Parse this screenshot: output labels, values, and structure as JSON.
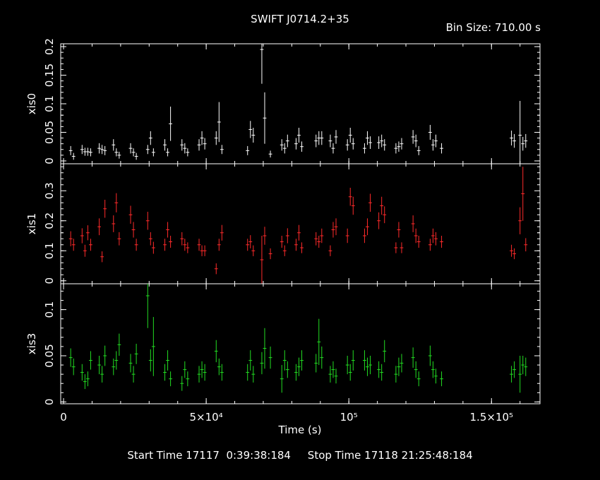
{
  "title": "SWIFT J0714.2+35",
  "bin_size": "Bin Size: 710.00 s",
  "footer": "Start Time 17117  0:39:38:184     Stop Time 17118 21:25:48:184",
  "chart_data": {
    "type": "scatter",
    "xlabel": "Time (s)",
    "xlim": [
      -1000,
      167000
    ],
    "x_ticks": [
      {
        "value": 0,
        "label": "0"
      },
      {
        "value": 50000,
        "label": "5×10⁴"
      },
      {
        "value": 100000,
        "label": "10⁵"
      },
      {
        "value": 150000,
        "label": "1.5×10⁵"
      }
    ],
    "panels": [
      {
        "name": "xis0",
        "color": "#ffffff",
        "ylim": [
          -0.005,
          0.205
        ],
        "y_ticks": [
          {
            "value": 0,
            "label": "0"
          },
          {
            "value": 0.05,
            "label": "0.05"
          },
          {
            "value": 0.1,
            "label": "0.1"
          },
          {
            "value": 0.15,
            "label": "0.15"
          },
          {
            "value": 0.2,
            "label": "0.2"
          }
        ],
        "x": [
          2500,
          3500,
          6500,
          7500,
          8500,
          9500,
          12500,
          13500,
          14500,
          17500,
          18500,
          19500,
          23500,
          24500,
          25500,
          29500,
          30500,
          31500,
          35500,
          36500,
          37500,
          41500,
          42500,
          43500,
          47500,
          48500,
          49500,
          53500,
          54500,
          55500,
          64500,
          65500,
          66500,
          69500,
          70500,
          72500,
          76500,
          77500,
          78500,
          81500,
          82500,
          83500,
          88500,
          89500,
          90500,
          93500,
          94500,
          95500,
          99500,
          100500,
          101500,
          105500,
          106500,
          107500,
          110500,
          111500,
          112500,
          116500,
          117500,
          118500,
          122500,
          123500,
          124500,
          128500,
          129500,
          130500,
          132500,
          157000,
          158000,
          160000,
          161000,
          162000
        ],
        "y": [
          0.018,
          0.008,
          0.02,
          0.016,
          0.016,
          0.015,
          0.022,
          0.02,
          0.018,
          0.028,
          0.015,
          0.01,
          0.022,
          0.015,
          0.008,
          0.02,
          0.04,
          0.015,
          0.028,
          0.015,
          0.065,
          0.028,
          0.022,
          0.015,
          0.028,
          0.04,
          0.03,
          0.04,
          0.068,
          0.02,
          0.018,
          0.055,
          0.045,
          0.195,
          0.075,
          0.012,
          0.028,
          0.022,
          0.035,
          0.03,
          0.045,
          0.025,
          0.035,
          0.04,
          0.04,
          0.035,
          0.022,
          0.042,
          0.028,
          0.045,
          0.03,
          0.022,
          0.04,
          0.032,
          0.032,
          0.035,
          0.028,
          0.022,
          0.025,
          0.03,
          0.042,
          0.035,
          0.018,
          0.05,
          0.028,
          0.035,
          0.022,
          0.04,
          0.035,
          0.045,
          0.03,
          0.035
        ],
        "err": [
          0.008,
          0.006,
          0.008,
          0.007,
          0.007,
          0.007,
          0.009,
          0.008,
          0.008,
          0.01,
          0.007,
          0.006,
          0.009,
          0.007,
          0.006,
          0.008,
          0.012,
          0.007,
          0.01,
          0.007,
          0.03,
          0.01,
          0.009,
          0.007,
          0.01,
          0.012,
          0.01,
          0.012,
          0.035,
          0.008,
          0.008,
          0.015,
          0.013,
          0.06,
          0.045,
          0.006,
          0.01,
          0.009,
          0.011,
          0.01,
          0.013,
          0.009,
          0.011,
          0.012,
          0.012,
          0.011,
          0.009,
          0.012,
          0.01,
          0.013,
          0.01,
          0.009,
          0.012,
          0.011,
          0.011,
          0.011,
          0.01,
          0.009,
          0.009,
          0.01,
          0.012,
          0.011,
          0.008,
          0.013,
          0.01,
          0.011,
          0.009,
          0.013,
          0.012,
          0.06,
          0.012,
          0.012
        ]
      },
      {
        "name": "xis1",
        "color": "#ff2a2a",
        "ylim": [
          -0.01,
          0.39
        ],
        "y_ticks": [
          {
            "value": 0,
            "label": "0"
          },
          {
            "value": 0.1,
            "label": "0.1"
          },
          {
            "value": 0.2,
            "label": "0.2"
          },
          {
            "value": 0.3,
            "label": "0.3"
          }
        ],
        "x": [
          2500,
          3500,
          6500,
          7500,
          8500,
          9500,
          12500,
          13500,
          14500,
          17500,
          18500,
          19500,
          23500,
          24500,
          25500,
          29500,
          30500,
          31500,
          35500,
          36500,
          37500,
          41500,
          42500,
          43500,
          47500,
          48500,
          49500,
          53500,
          54500,
          55500,
          64500,
          65500,
          66500,
          69500,
          70500,
          72500,
          76500,
          77500,
          78500,
          81500,
          82500,
          83500,
          88500,
          89500,
          90500,
          93500,
          94500,
          95500,
          99500,
          100500,
          101500,
          105500,
          106500,
          107500,
          110500,
          111500,
          112500,
          116500,
          117500,
          118500,
          122500,
          123500,
          124500,
          128500,
          129500,
          130500,
          132500,
          157000,
          158000,
          160000,
          161000,
          162000
        ],
        "y": [
          0.14,
          0.12,
          0.15,
          0.1,
          0.16,
          0.12,
          0.18,
          0.08,
          0.24,
          0.19,
          0.26,
          0.14,
          0.22,
          0.17,
          0.12,
          0.2,
          0.14,
          0.11,
          0.12,
          0.17,
          0.13,
          0.14,
          0.12,
          0.11,
          0.12,
          0.1,
          0.1,
          0.04,
          0.12,
          0.16,
          0.12,
          0.13,
          0.1,
          0.07,
          0.15,
          0.09,
          0.13,
          0.1,
          0.15,
          0.12,
          0.16,
          0.11,
          0.14,
          0.13,
          0.15,
          0.1,
          0.17,
          0.18,
          0.15,
          0.28,
          0.25,
          0.15,
          0.18,
          0.26,
          0.2,
          0.25,
          0.22,
          0.11,
          0.17,
          0.11,
          0.19,
          0.15,
          0.13,
          0.12,
          0.15,
          0.14,
          0.13,
          0.1,
          0.09,
          0.2,
          0.29,
          0.12
        ],
        "err": [
          0.025,
          0.02,
          0.025,
          0.02,
          0.025,
          0.02,
          0.028,
          0.018,
          0.03,
          0.028,
          0.032,
          0.022,
          0.03,
          0.026,
          0.02,
          0.03,
          0.022,
          0.02,
          0.02,
          0.026,
          0.02,
          0.022,
          0.02,
          0.018,
          0.02,
          0.018,
          0.018,
          0.018,
          0.02,
          0.026,
          0.02,
          0.022,
          0.018,
          0.08,
          0.03,
          0.018,
          0.02,
          0.018,
          0.025,
          0.02,
          0.026,
          0.018,
          0.022,
          0.02,
          0.024,
          0.018,
          0.026,
          0.028,
          0.024,
          0.03,
          0.03,
          0.024,
          0.028,
          0.03,
          0.028,
          0.03,
          0.028,
          0.018,
          0.026,
          0.018,
          0.028,
          0.024,
          0.02,
          0.02,
          0.024,
          0.022,
          0.02,
          0.02,
          0.018,
          0.045,
          0.09,
          0.022
        ]
      },
      {
        "name": "xis3",
        "color": "#22dd22",
        "ylim": [
          -0.002,
          0.128
        ],
        "y_ticks": [
          {
            "value": 0,
            "label": "0"
          },
          {
            "value": 0.05,
            "label": "0.05"
          },
          {
            "value": 0.1,
            "label": "0.1"
          }
        ],
        "x": [
          2500,
          3500,
          6500,
          7500,
          8500,
          9500,
          12500,
          13500,
          14500,
          17500,
          18500,
          19500,
          23500,
          24500,
          25500,
          29500,
          30500,
          31500,
          35500,
          36500,
          37500,
          41500,
          42500,
          43500,
          47500,
          48500,
          49500,
          53500,
          54500,
          55500,
          64500,
          65500,
          66500,
          69500,
          70500,
          72500,
          76500,
          77500,
          78500,
          81500,
          82500,
          83500,
          88500,
          89500,
          90500,
          93500,
          94500,
          95500,
          99500,
          100500,
          101500,
          105500,
          106500,
          107500,
          110500,
          111500,
          112500,
          116500,
          117500,
          118500,
          122500,
          123500,
          124500,
          128500,
          129500,
          130500,
          132500,
          157000,
          158000,
          160000,
          161000,
          162000
        ],
        "y": [
          0.048,
          0.038,
          0.032,
          0.022,
          0.025,
          0.045,
          0.04,
          0.03,
          0.05,
          0.038,
          0.045,
          0.062,
          0.042,
          0.03,
          0.052,
          0.115,
          0.045,
          0.06,
          0.032,
          0.045,
          0.025,
          0.02,
          0.035,
          0.025,
          0.03,
          0.035,
          0.032,
          0.055,
          0.038,
          0.032,
          0.032,
          0.045,
          0.03,
          0.042,
          0.058,
          0.048,
          0.025,
          0.045,
          0.035,
          0.032,
          0.038,
          0.045,
          0.042,
          0.065,
          0.048,
          0.03,
          0.035,
          0.028,
          0.04,
          0.032,
          0.045,
          0.045,
          0.038,
          0.04,
          0.035,
          0.032,
          0.055,
          0.03,
          0.038,
          0.042,
          0.048,
          0.035,
          0.025,
          0.05,
          0.035,
          0.028,
          0.025,
          0.03,
          0.035,
          0.03,
          0.04,
          0.038
        ],
        "err": [
          0.01,
          0.009,
          0.009,
          0.008,
          0.008,
          0.01,
          0.01,
          0.009,
          0.011,
          0.009,
          0.01,
          0.012,
          0.01,
          0.009,
          0.011,
          0.035,
          0.012,
          0.032,
          0.009,
          0.011,
          0.008,
          0.008,
          0.009,
          0.008,
          0.009,
          0.009,
          0.009,
          0.012,
          0.009,
          0.009,
          0.009,
          0.011,
          0.009,
          0.012,
          0.022,
          0.012,
          0.015,
          0.011,
          0.009,
          0.009,
          0.01,
          0.011,
          0.01,
          0.025,
          0.012,
          0.009,
          0.009,
          0.008,
          0.01,
          0.009,
          0.011,
          0.011,
          0.01,
          0.01,
          0.009,
          0.009,
          0.012,
          0.009,
          0.01,
          0.01,
          0.011,
          0.009,
          0.008,
          0.011,
          0.009,
          0.008,
          0.008,
          0.009,
          0.009,
          0.02,
          0.01,
          0.01
        ]
      }
    ]
  }
}
